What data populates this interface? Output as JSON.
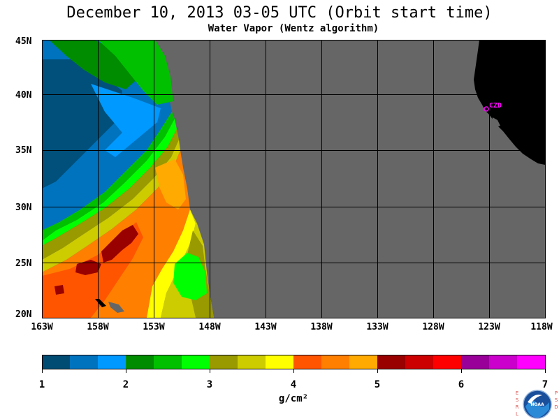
{
  "title": "December 10, 2013  03-05 UTC  (Orbit start time)",
  "subtitle": "Water Vapor (Wentz algorithm)",
  "lat_labels": [
    "45N",
    "40N",
    "35N",
    "30N",
    "25N",
    "20N"
  ],
  "lon_labels": [
    "163W",
    "158W",
    "153W",
    "148W",
    "143W",
    "138W",
    "133W",
    "128W",
    "123W",
    "118W"
  ],
  "station_label": "CZD",
  "colorbar": {
    "ticks": [
      "1",
      "2",
      "3",
      "4",
      "5",
      "6",
      "7"
    ],
    "unit": "g/cm²",
    "colors": [
      "#004c73",
      "#0073bf",
      "#0099ff",
      "#008c00",
      "#00c000",
      "#00ff00",
      "#999900",
      "#cccc00",
      "#ffff00",
      "#ff5500",
      "#ff8000",
      "#ffaa00",
      "#990000",
      "#cc0000",
      "#ff0000",
      "#990099",
      "#cc00cc",
      "#ff00ff"
    ]
  },
  "colors": {
    "no_data": "#666666",
    "land": "#000000",
    "grid": "#000000",
    "station": "#ff00ff"
  },
  "logo": {
    "left_letters": [
      "E",
      "S",
      "R",
      "L"
    ],
    "right_letters": [
      "P",
      "S",
      "D"
    ],
    "center": "NOAA"
  }
}
